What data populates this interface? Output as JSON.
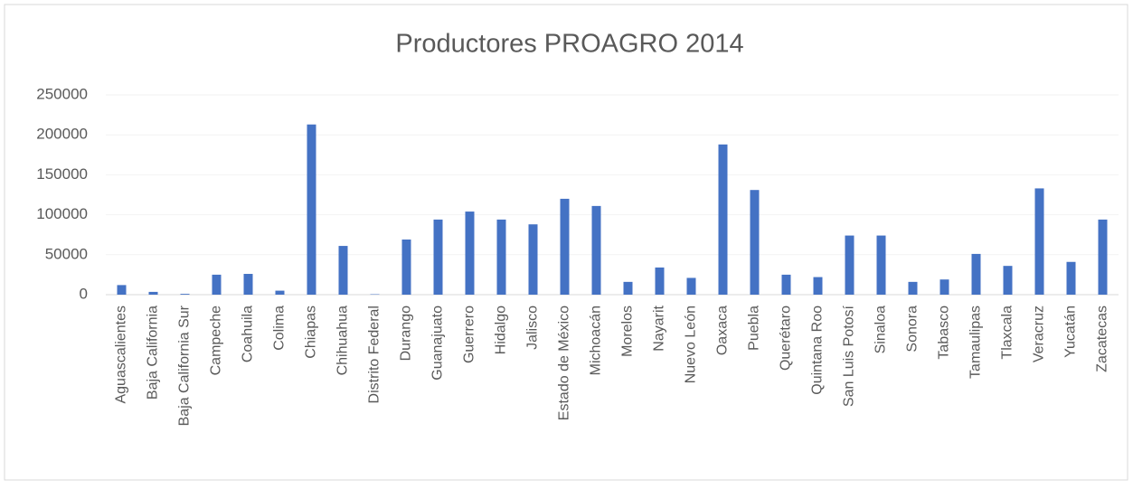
{
  "chart_data": {
    "type": "bar",
    "title": "Productores PROAGRO 2014",
    "categories": [
      "Aguascalientes",
      "Baja California",
      "Baja California Sur",
      "Campeche",
      "Coahuila",
      "Colima",
      "Chiapas",
      "Chihuahua",
      "Distrito Federal",
      "Durango",
      "Guanajuato",
      "Guerrero",
      "Hidalgo",
      "Jalisco",
      "Estado de México",
      "Michoacán",
      "Morelos",
      "Nayarit",
      "Nuevo León",
      "Oaxaca",
      "Puebla",
      "Querétaro",
      "Quintana Roo",
      "San Luis Potosí",
      "Sinaloa",
      "Sonora",
      "Tabasco",
      "Tamaulipas",
      "Tlaxcala",
      "Veracruz",
      "Yucatán",
      "Zacatecas"
    ],
    "values": [
      12000,
      3500,
      1000,
      25000,
      26000,
      5000,
      213000,
      61000,
      500,
      69000,
      94000,
      104000,
      94000,
      88000,
      120000,
      111000,
      16000,
      34000,
      21000,
      188000,
      131000,
      25000,
      22000,
      74000,
      74000,
      16000,
      19000,
      51000,
      36000,
      133000,
      41000,
      94000
    ],
    "color": "#4472c4",
    "ylim": [
      0,
      250000
    ],
    "yticks": [
      0,
      50000,
      100000,
      150000,
      200000,
      250000
    ],
    "grid": true
  }
}
